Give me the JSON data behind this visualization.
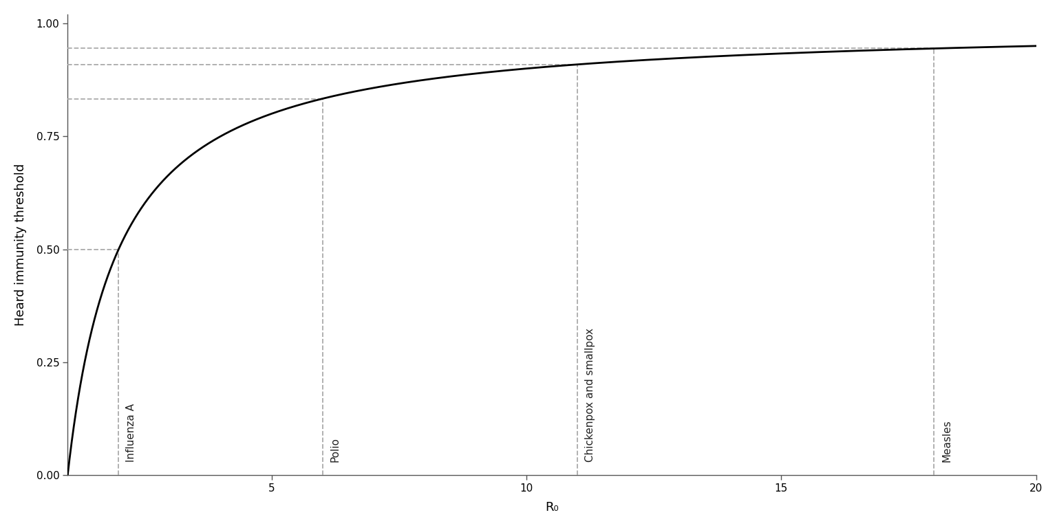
{
  "title": "",
  "xlabel": "R₀",
  "ylabel": "Heard immunity threshold",
  "x_min": 1,
  "x_max": 20,
  "y_min": 0,
  "y_max": 1.0,
  "pathogens": [
    {
      "name": "Influenza A",
      "R0": 2
    },
    {
      "name": "Polio",
      "R0": 6
    },
    {
      "name": "Chickenpox and smallpox",
      "R0": 11
    },
    {
      "name": "Measles",
      "R0": 18
    }
  ],
  "curve_color": "#000000",
  "dashed_color": "#aaaaaa",
  "background_color": "#ffffff",
  "curve_linewidth": 2.0,
  "dashed_linewidth": 1.3,
  "label_fontsize": 11,
  "axis_label_fontsize": 13,
  "tick_fontsize": 11
}
